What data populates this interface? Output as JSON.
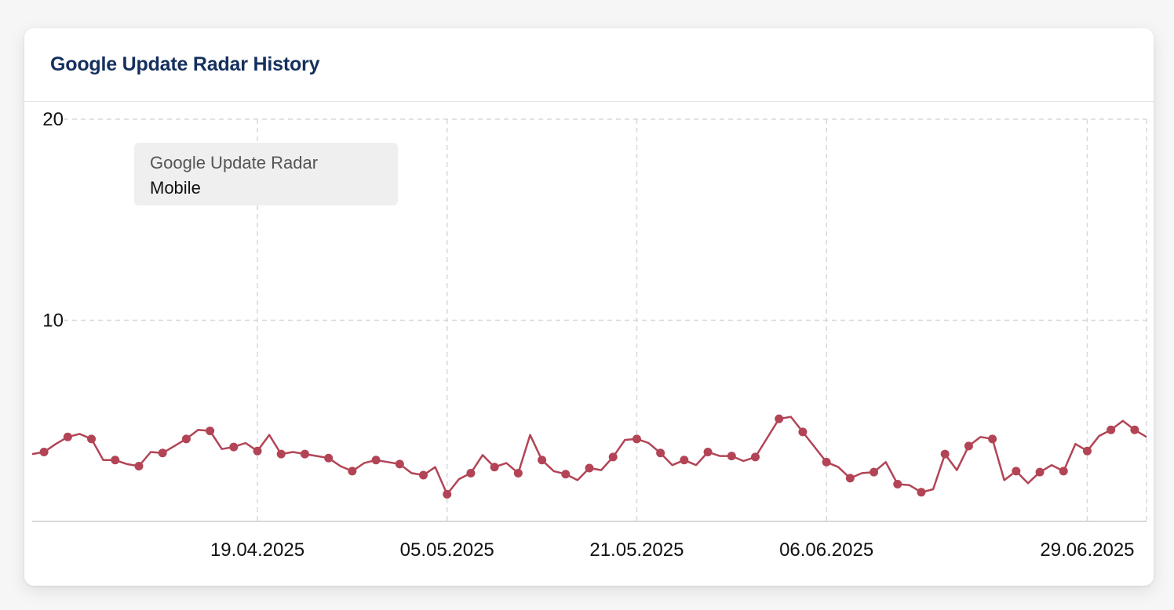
{
  "card": {
    "title": "Google Update Radar History"
  },
  "legend": {
    "title": "Google Update Radar",
    "label": "Mobile"
  },
  "colors": {
    "series": "#b24456",
    "title": "#15305e",
    "grid": "#d8d8d8",
    "axis": "#cccccc"
  },
  "chart_data": {
    "type": "line",
    "title": "Google Update Radar History",
    "xlabel": "",
    "ylabel": "",
    "ylim": [
      0,
      20
    ],
    "yticks": [
      10,
      20
    ],
    "grid": true,
    "legend_position": "top-left",
    "x_ticks": [
      "19.04.2025",
      "05.05.2025",
      "21.05.2025",
      "06.06.2025",
      "29.06.2025"
    ],
    "x_tick_index": [
      19,
      35,
      51,
      67,
      89
    ],
    "series": [
      {
        "name": "Mobile",
        "values": [
          3.35,
          3.45,
          3.85,
          4.2,
          4.35,
          4.1,
          3.05,
          3.05,
          2.85,
          2.75,
          3.45,
          3.4,
          3.75,
          4.1,
          4.55,
          4.5,
          3.6,
          3.7,
          3.9,
          3.5,
          4.3,
          3.35,
          3.45,
          3.35,
          3.25,
          3.15,
          2.75,
          2.5,
          2.9,
          3.05,
          2.95,
          2.85,
          2.4,
          2.3,
          2.7,
          1.35,
          2.1,
          2.4,
          3.3,
          2.7,
          2.9,
          2.4,
          4.3,
          3.05,
          2.5,
          2.35,
          2.05,
          2.65,
          2.55,
          3.2,
          4.05,
          4.1,
          3.9,
          3.4,
          2.8,
          3.05,
          2.8,
          3.45,
          3.25,
          3.25,
          3.0,
          3.2,
          4.15,
          5.1,
          5.2,
          4.45,
          3.7,
          2.95,
          2.7,
          2.15,
          2.4,
          2.45,
          2.95,
          1.85,
          1.8,
          1.45,
          1.6,
          3.35,
          2.55,
          3.75,
          4.2,
          4.1,
          2.05,
          2.5,
          1.9,
          2.45,
          2.8,
          2.5,
          3.85,
          3.5,
          4.25,
          4.55,
          5.0,
          4.55,
          4.2
        ]
      }
    ]
  }
}
